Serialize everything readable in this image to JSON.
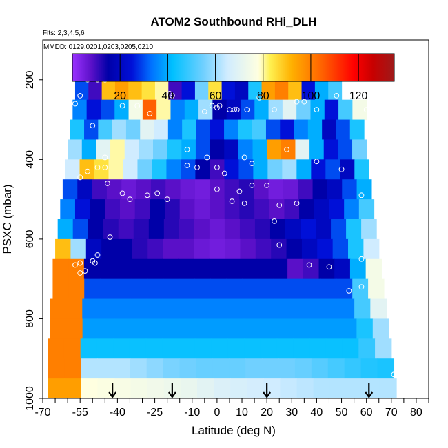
{
  "chart_data": {
    "type": "heatmap",
    "title": "ATOM2 Southbound RHi_DLH",
    "flights_note": "Flts: 2,3,4,5,6",
    "dates_note": "MMDD: 0129,0201,0203,0205,0210",
    "xlabel": "Latitude (deg N)",
    "ylabel": "PSXC (mbar)",
    "xlim": [
      -70,
      85
    ],
    "ylim": [
      1000,
      100
    ],
    "x_ticks": [
      -70,
      -55,
      -40,
      -25,
      -10,
      0,
      10,
      20,
      30,
      40,
      50,
      60,
      70,
      80
    ],
    "x_minor_step": 5,
    "y_ticks": [
      200,
      400,
      600,
      800,
      1000
    ],
    "colorbar": {
      "min": 0,
      "max": 135,
      "ticks": [
        20,
        40,
        60,
        80,
        100,
        120
      ],
      "stops": [
        [
          0,
          "#9a32ff"
        ],
        [
          8,
          "#5a10c8"
        ],
        [
          15,
          "#0000a8"
        ],
        [
          25,
          "#0010d8"
        ],
        [
          33,
          "#0070ff"
        ],
        [
          42,
          "#00c0ff"
        ],
        [
          55,
          "#70d0ff"
        ],
        [
          65,
          "#d0ecff"
        ],
        [
          78,
          "#ffffe0"
        ],
        [
          83,
          "#fff050"
        ],
        [
          92,
          "#ffb000"
        ],
        [
          105,
          "#ff6000"
        ],
        [
          118,
          "#ff0000"
        ],
        [
          126,
          "#c80000"
        ],
        [
          135,
          "#9e1a1a"
        ]
      ]
    },
    "arrow_latitudes": [
      -42,
      -18,
      20,
      61
    ],
    "pressure_bins": [
      {
        "p": 175,
        "lat_min": -52,
        "lat_max": -43,
        "values": [
          65,
          45,
          30,
          20
        ]
      },
      {
        "p": 225,
        "lat_min": -57,
        "lat_max": 50,
        "values": [
          30,
          10,
          90,
          95,
          90,
          85,
          80,
          10,
          25,
          55,
          85,
          25,
          20,
          45,
          95,
          100,
          90,
          25,
          40,
          50
        ]
      },
      {
        "p": 275,
        "lat_min": -58,
        "lat_max": 60,
        "values": [
          35,
          25,
          30,
          40,
          75,
          105,
          80,
          35,
          40,
          60,
          15,
          20,
          30,
          40,
          60,
          70,
          55,
          40,
          25,
          50,
          75
        ]
      },
      {
        "p": 325,
        "lat_min": -59,
        "lat_max": 59,
        "values": [
          45,
          30,
          50,
          60,
          55,
          70,
          65,
          35,
          45,
          30,
          25,
          35,
          45,
          50,
          30,
          25,
          35,
          40,
          20,
          30,
          45
        ]
      },
      {
        "p": 375,
        "lat_min": -60,
        "lat_max": 60,
        "values": [
          60,
          40,
          70,
          80,
          65,
          60,
          55,
          45,
          40,
          30,
          15,
          20,
          35,
          40,
          95,
          100,
          70,
          40,
          25,
          30,
          55
        ]
      },
      {
        "p": 425,
        "lat_min": -61,
        "lat_max": 61,
        "values": [
          65,
          90,
          85,
          80,
          65,
          55,
          45,
          35,
          30,
          15,
          10,
          25,
          30,
          40,
          55,
          60,
          40,
          25,
          30,
          20,
          45
        ]
      },
      {
        "p": 475,
        "lat_min": -62,
        "lat_max": 62,
        "values": [
          30,
          20,
          10,
          8,
          6,
          8,
          10,
          8,
          6,
          5,
          8,
          10,
          12,
          8,
          5,
          6,
          10,
          15,
          20,
          30,
          40
        ]
      },
      {
        "p": 525,
        "lat_min": -63,
        "lat_max": 63,
        "values": [
          35,
          25,
          15,
          10,
          8,
          10,
          15,
          12,
          8,
          6,
          8,
          10,
          12,
          10,
          8,
          10,
          15,
          20,
          25,
          35,
          50
        ]
      },
      {
        "p": 575,
        "lat_min": -64,
        "lat_max": 64,
        "values": [
          40,
          30,
          15,
          12,
          10,
          12,
          15,
          12,
          10,
          8,
          6,
          8,
          10,
          12,
          15,
          20,
          25,
          20,
          30,
          45,
          60
        ]
      },
      {
        "p": 625,
        "lat_min": -65,
        "lat_max": 65,
        "values": [
          90,
          60,
          20,
          15,
          15,
          12,
          10,
          8,
          8,
          6,
          5,
          6,
          8,
          10,
          12,
          15,
          20,
          25,
          30,
          45,
          65
        ]
      },
      {
        "p": 675,
        "lat_min": -66,
        "lat_max": 66,
        "values": [
          100,
          100,
          15,
          15,
          15,
          15,
          15,
          15,
          15,
          15,
          15,
          15,
          15,
          15,
          15,
          8,
          10,
          15,
          20,
          40,
          75
        ]
      },
      {
        "p": 725,
        "lat_min": -66,
        "lat_max": 67,
        "values": [
          100,
          100,
          30,
          30,
          30,
          30,
          30,
          30,
          30,
          30,
          30,
          30,
          30,
          30,
          30,
          30,
          30,
          30,
          30,
          50,
          75
        ]
      },
      {
        "p": 775,
        "lat_min": -67,
        "lat_max": 68,
        "values": [
          100,
          100,
          35,
          35,
          35,
          35,
          35,
          35,
          35,
          35,
          35,
          35,
          35,
          35,
          35,
          35,
          35,
          35,
          35,
          50,
          70
        ]
      },
      {
        "p": 825,
        "lat_min": -67,
        "lat_max": 69,
        "values": [
          100,
          100,
          38,
          38,
          38,
          38,
          38,
          38,
          38,
          38,
          38,
          38,
          38,
          38,
          38,
          38,
          38,
          38,
          38,
          45,
          60
        ]
      },
      {
        "p": 875,
        "lat_min": -68,
        "lat_max": 70,
        "values": [
          100,
          100,
          43,
          43,
          43,
          43,
          43,
          43,
          43,
          43,
          43,
          43,
          43,
          43,
          43,
          43,
          43,
          43,
          43,
          48,
          60
        ]
      },
      {
        "p": 925,
        "lat_min": -68,
        "lat_max": 71,
        "values": [
          100,
          100,
          62,
          62,
          62,
          60,
          58,
          56,
          55,
          54,
          54,
          54,
          55,
          55,
          55,
          54,
          52,
          50,
          48,
          46,
          45
        ]
      },
      {
        "p": 975,
        "lat_min": -68,
        "lat_max": 72,
        "values": [
          95,
          95,
          78,
          77,
          76,
          75,
          74,
          73,
          72,
          70,
          68,
          67,
          66,
          65,
          64,
          63,
          62,
          62,
          62,
          62,
          62
        ]
      }
    ],
    "observation_points": [
      [
        -52,
        200
      ],
      [
        -48,
        200
      ],
      [
        -45,
        200
      ],
      [
        -55,
        240
      ],
      [
        -57,
        260
      ],
      [
        -38,
        265
      ],
      [
        -32,
        265
      ],
      [
        -27,
        285
      ],
      [
        -19,
        235
      ],
      [
        -18,
        240
      ],
      [
        -2,
        265
      ],
      [
        0,
        270
      ],
      [
        1,
        265
      ],
      [
        5,
        275
      ],
      [
        -5,
        280
      ],
      [
        7,
        275
      ],
      [
        8,
        275
      ],
      [
        12,
        275
      ],
      [
        17,
        245
      ],
      [
        23,
        275
      ],
      [
        32,
        255
      ],
      [
        35,
        255
      ],
      [
        40,
        275
      ],
      [
        48,
        240
      ],
      [
        60,
        275
      ],
      [
        -50,
        315
      ],
      [
        -45,
        395
      ],
      [
        -48,
        420
      ],
      [
        -45,
        420
      ],
      [
        -52,
        430
      ],
      [
        -55,
        445
      ],
      [
        -44,
        460
      ],
      [
        -12,
        375
      ],
      [
        -12,
        415
      ],
      [
        -8,
        420
      ],
      [
        -4,
        395
      ],
      [
        0,
        420
      ],
      [
        3,
        435
      ],
      [
        11,
        395
      ],
      [
        14,
        410
      ],
      [
        28,
        375
      ],
      [
        40,
        405
      ],
      [
        50,
        425
      ],
      [
        -38,
        485
      ],
      [
        -35,
        500
      ],
      [
        -28,
        490
      ],
      [
        -24,
        485
      ],
      [
        -20,
        500
      ],
      [
        0,
        475
      ],
      [
        6,
        505
      ],
      [
        9,
        480
      ],
      [
        11,
        510
      ],
      [
        14,
        465
      ],
      [
        20,
        465
      ],
      [
        25,
        515
      ],
      [
        32,
        510
      ],
      [
        58,
        490
      ],
      [
        -43,
        595
      ],
      [
        23,
        555
      ],
      [
        25,
        615
      ],
      [
        37,
        665
      ],
      [
        45,
        670
      ],
      [
        53,
        730
      ],
      [
        58,
        720
      ],
      [
        58,
        650
      ],
      [
        -68,
        645
      ],
      [
        -57,
        665
      ],
      [
        -55,
        660
      ],
      [
        -53,
        680
      ],
      [
        -50,
        655
      ],
      [
        -49,
        660
      ],
      [
        -55,
        685
      ],
      [
        -48,
        640
      ],
      [
        71,
        940
      ]
    ]
  }
}
